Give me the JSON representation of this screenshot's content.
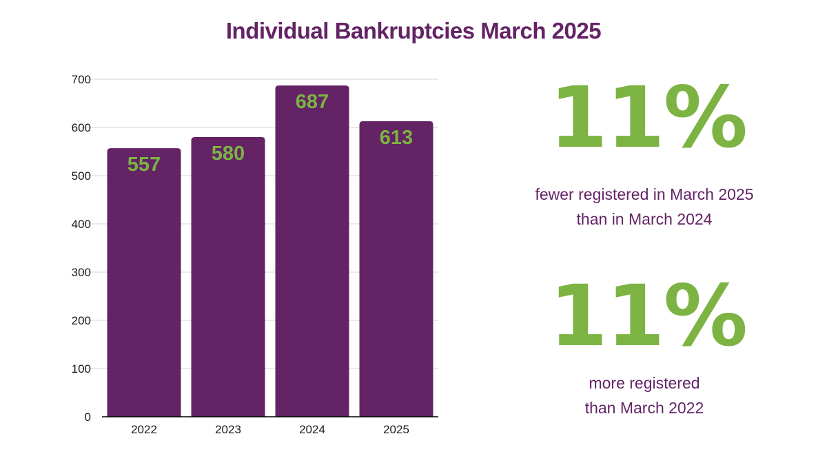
{
  "colors": {
    "bar": "#632365",
    "label": "#7cb342",
    "title": "#632365",
    "text": "#632365",
    "grid": "#d6d6d6",
    "axis": "#000000"
  },
  "chart_data": {
    "type": "bar",
    "title": "Individual Bankruptcies March 2025",
    "categories": [
      "2022",
      "2023",
      "2024",
      "2025"
    ],
    "values": [
      557,
      580,
      687,
      613
    ],
    "data_labels": [
      "557",
      "580",
      "687",
      "613"
    ],
    "ylim": [
      0,
      700
    ],
    "yticks": [
      0,
      100,
      200,
      300,
      400,
      500,
      600,
      700
    ],
    "xlabel": "",
    "ylabel": "",
    "grid": true,
    "legend": "none"
  },
  "stats": [
    {
      "value": "11%",
      "line1": "fewer registered in March 2025",
      "line2": "than in March 2024"
    },
    {
      "value": "11%",
      "line1": "more registered",
      "line2": "than March 2022"
    }
  ]
}
